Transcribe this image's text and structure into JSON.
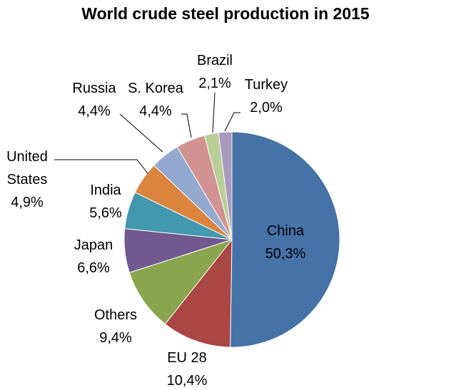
{
  "chart_data": {
    "type": "pie",
    "title": "World crude steel production in 2015",
    "slices": [
      {
        "label": "China",
        "value": 50.3,
        "display": "50,3%",
        "color": "#4572A7"
      },
      {
        "label": "EU 28",
        "value": 10.4,
        "display": "10,4%",
        "color": "#AA4643"
      },
      {
        "label": "Others",
        "value": 9.4,
        "display": "9,4%",
        "color": "#89A54E"
      },
      {
        "label": "Japan",
        "value": 6.6,
        "display": "6,6%",
        "color": "#71588F"
      },
      {
        "label": "India",
        "value": 5.6,
        "display": "5,6%",
        "color": "#4198AF"
      },
      {
        "label": "United States",
        "value": 4.9,
        "display": "4,9%",
        "color": "#DB843D"
      },
      {
        "label": "Russia",
        "value": 4.4,
        "display": "4,4%",
        "color": "#93A9CF"
      },
      {
        "label": "S. Korea",
        "value": 4.4,
        "display": "4,4%",
        "color": "#D19392"
      },
      {
        "label": "Brazil",
        "value": 2.1,
        "display": "2,1%",
        "color": "#B9CD96"
      },
      {
        "label": "Turkey",
        "value": 2.0,
        "display": "2,0%",
        "color": "#A99BBD"
      }
    ]
  }
}
